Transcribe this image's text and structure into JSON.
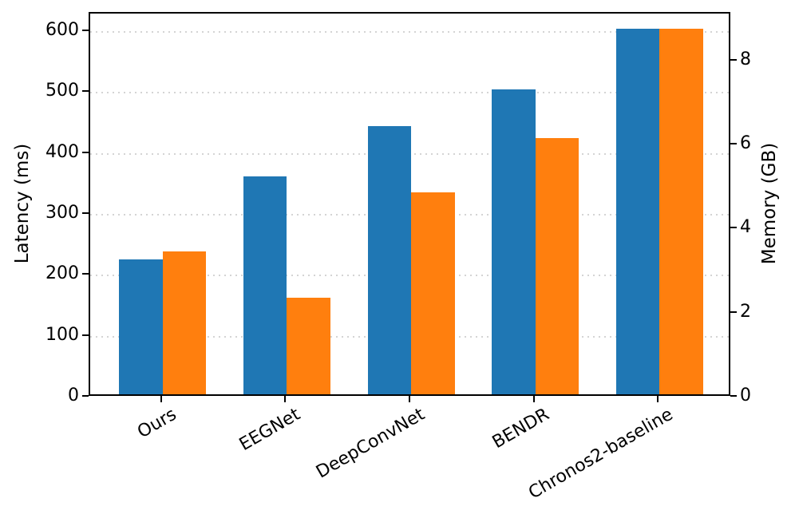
{
  "figure": {
    "background_color": "#ffffff",
    "text_color": "#000000",
    "spine_color": "#000000",
    "grid_color": "#d4d4d4"
  },
  "chart_data": {
    "type": "bar",
    "title": "",
    "categories": [
      "Ours",
      "EEGNet",
      "DeepConvNet",
      "BENDR",
      "Chronos2-baseline"
    ],
    "series": [
      {
        "name": "Latency (ms)",
        "axis": "left",
        "color": "#1f77b4",
        "values": [
          222,
          357,
          440,
          500,
          600
        ]
      },
      {
        "name": "Memory (GB)",
        "axis": "right",
        "color": "#ff7f0e",
        "values": [
          3.4,
          2.3,
          4.8,
          6.1,
          8.7
        ]
      }
    ],
    "left_axis": {
      "label": "Latency (ms)",
      "ticks": [
        0,
        100,
        200,
        300,
        400,
        500,
        600
      ],
      "range": [
        0,
        630
      ]
    },
    "right_axis": {
      "label": "Memory (GB)",
      "ticks": [
        0,
        2,
        4,
        6,
        8
      ],
      "range": [
        0,
        9.135
      ]
    },
    "x_axis": {
      "tick_label_rotation_deg": 30
    },
    "grid": {
      "horizontal": true,
      "vertical": false,
      "style": "dotted"
    },
    "legend": {
      "visible": false
    }
  }
}
